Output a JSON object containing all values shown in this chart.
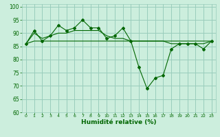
{
  "xlabel": "Humidité relative (%)",
  "ylabel": "",
  "bg_color": "#cceedd",
  "grid_color": "#99ccbb",
  "line_color": "#006600",
  "xlim": [
    -0.5,
    23.5
  ],
  "ylim": [
    60,
    101
  ],
  "yticks": [
    60,
    65,
    70,
    75,
    80,
    85,
    90,
    95,
    100
  ],
  "xticks": [
    0,
    1,
    2,
    3,
    4,
    5,
    6,
    7,
    8,
    9,
    10,
    11,
    12,
    13,
    14,
    15,
    16,
    17,
    18,
    19,
    20,
    21,
    22,
    23
  ],
  "main_x": [
    0,
    1,
    2,
    3,
    4,
    5,
    6,
    7,
    8,
    9,
    10,
    11,
    12,
    13,
    14,
    15,
    16,
    17,
    18,
    19,
    20,
    21,
    22,
    23
  ],
  "main_y": [
    86,
    91,
    87,
    89,
    93,
    91,
    92,
    95,
    92,
    92,
    88,
    89,
    92,
    87,
    77,
    69,
    73,
    74,
    84,
    86,
    86,
    86,
    84,
    87
  ],
  "smooth1_x": [
    0,
    1,
    2,
    3,
    4,
    5,
    6,
    7,
    8,
    9,
    10,
    11,
    12,
    13,
    14,
    15,
    16,
    17,
    18,
    19,
    20,
    21,
    22,
    23
  ],
  "smooth1_y": [
    86,
    90,
    88,
    89,
    90,
    90,
    91,
    91,
    91,
    91,
    89,
    88,
    88,
    87,
    87,
    87,
    87,
    87,
    86,
    86,
    86,
    86,
    86,
    87
  ],
  "smooth2_x": [
    0,
    1,
    2,
    3,
    4,
    5,
    6,
    7,
    8,
    9,
    10,
    11,
    12,
    13,
    14,
    15,
    16,
    17,
    18,
    19,
    20,
    21,
    22,
    23
  ],
  "smooth2_y": [
    86,
    87,
    87,
    87,
    87,
    87,
    87,
    87,
    87,
    87,
    87,
    87,
    87,
    87,
    87,
    87,
    87,
    87,
    87,
    87,
    87,
    87,
    87,
    87
  ]
}
